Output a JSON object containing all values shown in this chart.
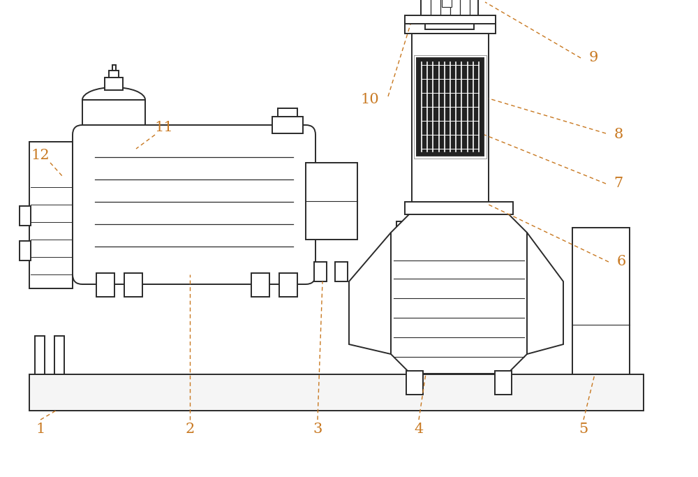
{
  "bg_color": "#ffffff",
  "line_color": "#2a2a2a",
  "label_color": "#c87820",
  "fig_width": 10.0,
  "fig_height": 6.83
}
